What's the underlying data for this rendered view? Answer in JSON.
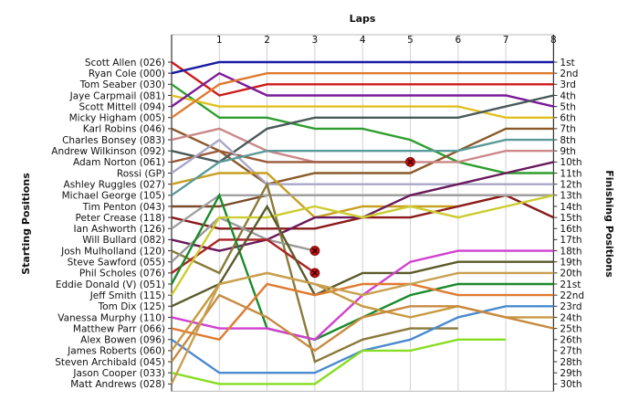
{
  "chart_data": {
    "type": "line",
    "title": "",
    "xlabel": "Laps",
    "ylabel_left": "Starting Positions",
    "ylabel_right": "Finishing Positions",
    "x_ticks": [
      "1",
      "2",
      "3",
      "4",
      "5",
      "6",
      "7",
      "8"
    ],
    "finish_labels": [
      "1st",
      "2nd",
      "3rd",
      "4th",
      "5th",
      "6th",
      "7th",
      "8th",
      "9th",
      "10th",
      "11th",
      "12th",
      "13th",
      "14th",
      "15th",
      "16th",
      "17th",
      "18th",
      "19th",
      "20th",
      "21st",
      "22nd",
      "23rd",
      "24th",
      "25th",
      "26th",
      "27th",
      "28th",
      "29th",
      "30th"
    ],
    "grid": true,
    "series": [
      {
        "name": "Scott Allen (026)",
        "color": "#cc1a1a",
        "positions": [
          1,
          4,
          3,
          3,
          3,
          3,
          3,
          3,
          3
        ]
      },
      {
        "name": "Ryan Cole (000)",
        "color": "#1a1aa8",
        "positions": [
          2,
          1,
          1,
          1,
          1,
          1,
          1,
          1,
          1
        ]
      },
      {
        "name": "Tom Seaber (030)",
        "color": "#2e9e2e",
        "positions": [
          3,
          6,
          6,
          7,
          7,
          8,
          10,
          11,
          11
        ]
      },
      {
        "name": "Jaye Carpmail (081)",
        "color": "#e0c020",
        "positions": [
          4,
          5,
          5,
          5,
          5,
          5,
          5,
          6,
          6
        ]
      },
      {
        "name": "Scott Mittell (094)",
        "color": "#7a1a9a",
        "positions": [
          5,
          2,
          4,
          4,
          4,
          4,
          4,
          4,
          5
        ]
      },
      {
        "name": "Micky Higham (005)",
        "color": "#e07a30",
        "positions": [
          6,
          3,
          2,
          2,
          2,
          2,
          2,
          2,
          2
        ]
      },
      {
        "name": "Karl Robins (046)",
        "color": "#8a5a2a",
        "positions": [
          7,
          9,
          12,
          11,
          11,
          11,
          9,
          7,
          7
        ]
      },
      {
        "name": "Charles Bonsey (083)",
        "color": "#cc8888",
        "positions": [
          8,
          7,
          9,
          10,
          10,
          10,
          10,
          9,
          9
        ]
      },
      {
        "name": "Andrew Wilkinson (092)",
        "color": "#4a5a5a",
        "positions": [
          9,
          10,
          7,
          6,
          6,
          6,
          6,
          5,
          4
        ]
      },
      {
        "name": "Adam Norton (061)",
        "color": "#9a5a3a",
        "positions": [
          10,
          9,
          10,
          10,
          10,
          10,
          null,
          null,
          null
        ]
      },
      {
        "name": "Rossi (GP)",
        "color": "#a8a8c8",
        "positions": [
          11,
          8,
          12,
          12,
          12,
          12,
          12,
          12,
          12
        ]
      },
      {
        "name": "Ashley Ruggles (027)",
        "color": "#c8a020",
        "positions": [
          12,
          11,
          11,
          15,
          14,
          14,
          14,
          13,
          13
        ]
      },
      {
        "name": "Michael George (105)",
        "color": "#5a9a9a",
        "positions": [
          13,
          10,
          9,
          9,
          9,
          9,
          9,
          8,
          8
        ]
      },
      {
        "name": "Tim Penton (043)",
        "color": "#7a4a2a",
        "positions": [
          14,
          14,
          13,
          13,
          13,
          13,
          13,
          13,
          13
        ]
      },
      {
        "name": "Peter Crease (118)",
        "color": "#8a1a1a",
        "positions": [
          15,
          16,
          16,
          16,
          15,
          15,
          14,
          13,
          15
        ]
      },
      {
        "name": "Ian Ashworth (126)",
        "color": "#a0a0a0",
        "positions": [
          16,
          13,
          13,
          13,
          13,
          13,
          13,
          13,
          13
        ]
      },
      {
        "name": "Will Bullard (082)",
        "color": "#6a1a5a",
        "positions": [
          17,
          18,
          17,
          15,
          15,
          13,
          12,
          11,
          10
        ]
      },
      {
        "name": "Josh Mulholland (120)",
        "color": "#8a7a3a",
        "positions": [
          18,
          20,
          12,
          28,
          26,
          25,
          25,
          null,
          null
        ]
      },
      {
        "name": "Steve Sawford (055)",
        "color": "#9a9a9a",
        "positions": [
          19,
          15,
          17,
          18,
          null,
          null,
          null,
          null,
          null
        ]
      },
      {
        "name": "Phil Scholes (076)",
        "color": "#aa2222",
        "positions": [
          20,
          17,
          17,
          20,
          null,
          null,
          null,
          null,
          null
        ]
      },
      {
        "name": "Eddie Donald (V) (051)",
        "color": "#1a8a2a",
        "positions": [
          21,
          13,
          25,
          26,
          24,
          22,
          21,
          21,
          21
        ]
      },
      {
        "name": "Jeff Smith (115)",
        "color": "#cccc30",
        "positions": [
          22,
          15,
          15,
          14,
          15,
          14,
          15,
          14,
          13
        ]
      },
      {
        "name": "Tom Dix (125)",
        "color": "#5a5a2a",
        "positions": [
          23,
          21,
          14,
          22,
          20,
          20,
          19,
          19,
          19
        ]
      },
      {
        "name": "Vanessa Murphy (110)",
        "color": "#d040d0",
        "positions": [
          24,
          25,
          25,
          26,
          22,
          19,
          18,
          18,
          18
        ]
      },
      {
        "name": "Matthew Parr (066)",
        "color": "#e07a30",
        "positions": [
          25,
          26,
          21,
          22,
          21,
          21,
          22,
          22,
          22
        ]
      },
      {
        "name": "Alex Bowen (096)",
        "color": "#4a8ad0",
        "positions": [
          26,
          29,
          29,
          29,
          27,
          26,
          24,
          23,
          23
        ]
      },
      {
        "name": "James Roberts (060)",
        "color": "#c89a40",
        "positions": [
          27,
          21,
          20,
          21,
          23,
          24,
          23,
          24,
          24
        ]
      },
      {
        "name": "Steven Archibald (045)",
        "color": "#c88a40",
        "positions": [
          28,
          22,
          24,
          27,
          24,
          23,
          23,
          24,
          25
        ]
      },
      {
        "name": "Jason Cooper (033)",
        "color": "#88dd22",
        "positions": [
          29,
          30,
          30,
          30,
          27,
          27,
          26,
          26,
          null
        ]
      },
      {
        "name": "Matt Andrews (028)",
        "color": "#c8a050",
        "positions": [
          30,
          21,
          20,
          21,
          22,
          21,
          20,
          20,
          20
        ]
      }
    ],
    "retirements": [
      {
        "name": "Adam Norton (061)",
        "lap": 5,
        "position": 10
      },
      {
        "name": "Steve Sawford (055)",
        "lap": 3,
        "position": 18
      },
      {
        "name": "Phil Scholes (076)",
        "lap": 3,
        "position": 20
      }
    ]
  }
}
